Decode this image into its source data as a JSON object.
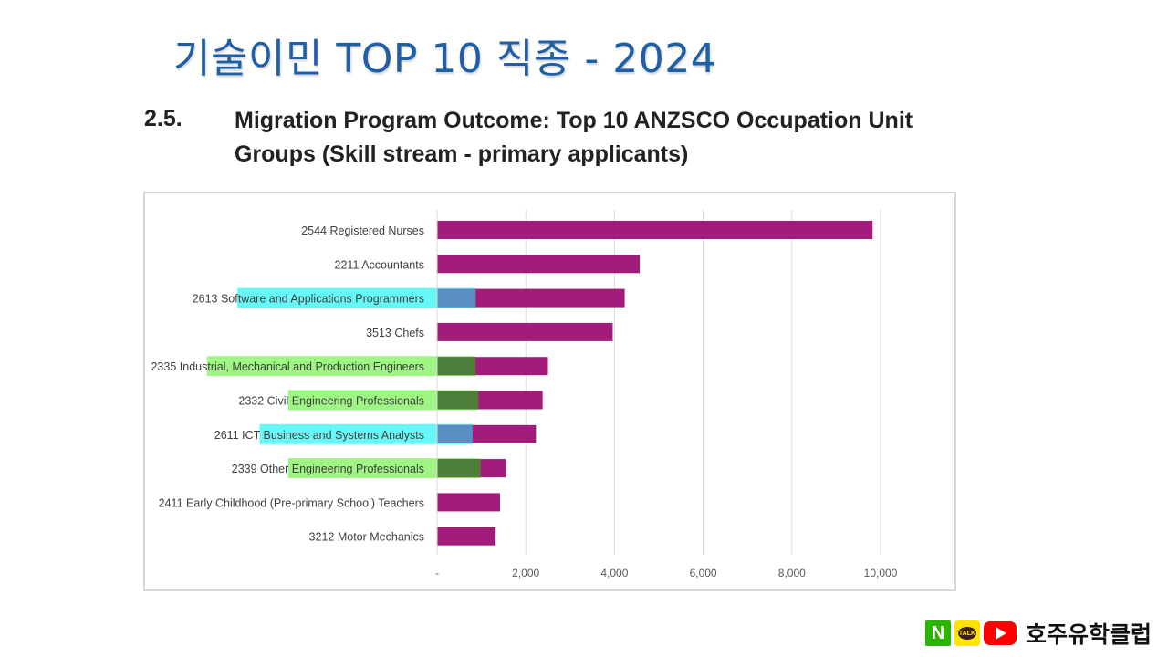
{
  "slide": {
    "title": "기술이민 TOP 10 직종 - 2024",
    "section_number": "2.5.",
    "section_title": "Migration Program Outcome: Top 10 ANZSCO Occupation Unit Groups (Skill stream - primary applicants)"
  },
  "colors": {
    "bar": "#a21c7c",
    "highlight_ict": "#5a8fc4",
    "highlight_eng": "#4e7f3a",
    "marker_cyan": "#33f5f5",
    "marker_green": "#7ef15a",
    "title_blue": "#1f5fa6"
  },
  "chart_data": {
    "type": "bar",
    "orientation": "horizontal",
    "title": "",
    "xlabel": "",
    "ylabel": "",
    "xlim": [
      0,
      11000
    ],
    "xticks": [
      0,
      2000,
      4000,
      6000,
      8000,
      10000
    ],
    "xtick_labels": [
      "-",
      "2,000",
      "4,000",
      "6,000",
      "8,000",
      "10,000"
    ],
    "grid": "vertical",
    "categories": [
      {
        "code": "2544",
        "prefix": "2544 Registered Nurses",
        "highlighted": "",
        "marker": "none"
      },
      {
        "code": "2211",
        "prefix": "2211 Accountants",
        "highlighted": "",
        "marker": "none"
      },
      {
        "code": "2613",
        "prefix": "2613 Soft",
        "highlighted": "ware and Applications Programmers",
        "marker": "cyan"
      },
      {
        "code": "3513",
        "prefix": "3513 Chefs",
        "highlighted": "",
        "marker": "none"
      },
      {
        "code": "2335",
        "prefix": "2335 Indust",
        "highlighted": "rial, Mechanical and Production Engineers",
        "marker": "green"
      },
      {
        "code": "2332",
        "prefix": "2332 Civil ",
        "highlighted": "Engineering Professionals",
        "marker": "green"
      },
      {
        "code": "2611",
        "prefix": "2611 ICT ",
        "highlighted": "Business and Systems Analysts",
        "marker": "cyan"
      },
      {
        "code": "2339",
        "prefix": "2339 Other ",
        "highlighted": "Engineering Professionals",
        "marker": "green"
      },
      {
        "code": "2411",
        "prefix": "2411 Early Childhood (Pre-primary School) Teachers",
        "highlighted": "",
        "marker": "none"
      },
      {
        "code": "3212",
        "prefix": "3212 Motor Mechanics",
        "highlighted": "",
        "marker": "none"
      }
    ],
    "values": [
      9820,
      4570,
      4230,
      3960,
      2500,
      2380,
      2230,
      1550,
      1420,
      1320
    ],
    "highlight_overlay": [
      0,
      0,
      870,
      0,
      870,
      930,
      800,
      980,
      0,
      0
    ]
  },
  "brand": {
    "n_label": "N",
    "talk_label": "TALK",
    "name": "호주유학클럽"
  }
}
